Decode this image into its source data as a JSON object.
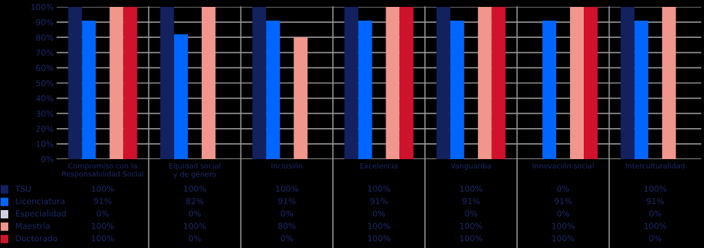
{
  "chart_data": {
    "type": "bar",
    "categories": [
      "Compromiso con la\nResponsabilidad Social",
      "Equidad social\ny de género",
      "Inclusión",
      "Excelencia",
      "Vanguardia",
      "Innovación social",
      "Interculturalidad"
    ],
    "series": [
      {
        "name": "TSU",
        "color": "#13215e",
        "values": [
          100,
          100,
          100,
          100,
          100,
          0,
          100
        ],
        "value_labels": [
          "100%",
          "100%",
          "100%",
          "100%",
          "100%",
          "0%",
          "100%"
        ]
      },
      {
        "name": "Licenciatura",
        "color": "#0066ff",
        "values": [
          91,
          82,
          91,
          91,
          91,
          91,
          91
        ],
        "value_labels": [
          "91%",
          "82%",
          "91%",
          "91%",
          "91%",
          "91%",
          "91%"
        ]
      },
      {
        "name": "Especialidad",
        "color": "#d0d0e0",
        "values": [
          0,
          0,
          0,
          0,
          0,
          0,
          0
        ],
        "value_labels": [
          "0%",
          "0%",
          "0%",
          "0%",
          "0%",
          "0%",
          "0%"
        ]
      },
      {
        "name": "Maestría",
        "color": "#f0968c",
        "values": [
          100,
          100,
          80,
          100,
          100,
          100,
          100
        ],
        "value_labels": [
          "100%",
          "100%",
          "80%",
          "100%",
          "100%",
          "100%",
          "100%"
        ]
      },
      {
        "name": "Doctorado",
        "color": "#d0122c",
        "values": [
          100,
          0,
          0,
          100,
          100,
          100,
          0
        ],
        "value_labels": [
          "100%",
          "0%",
          "0%",
          "100%",
          "100%",
          "100%",
          "0%"
        ]
      }
    ],
    "ylim": [
      0,
      100
    ],
    "yticks": [
      {
        "value": 0,
        "label": "0%"
      },
      {
        "value": 10,
        "label": "10%"
      },
      {
        "value": 20,
        "label": "20%"
      },
      {
        "value": 30,
        "label": "30%"
      },
      {
        "value": 40,
        "label": "40%"
      },
      {
        "value": 50,
        "label": "50%"
      },
      {
        "value": 60,
        "label": "60%"
      },
      {
        "value": 70,
        "label": "70%"
      },
      {
        "value": 80,
        "label": "80%"
      },
      {
        "value": 90,
        "label": "90%"
      },
      {
        "value": 100,
        "label": "100%"
      }
    ],
    "grid": "y",
    "legend": "bottom left"
  }
}
